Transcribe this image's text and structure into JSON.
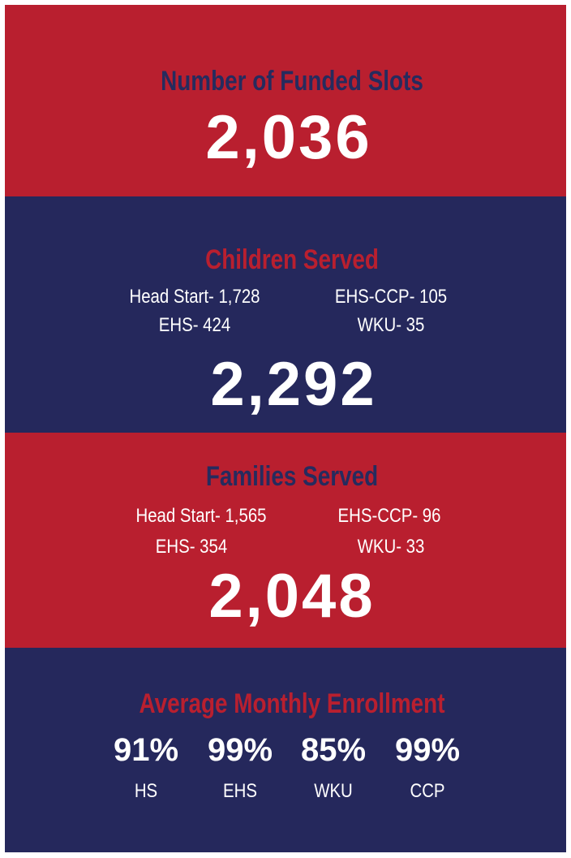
{
  "sections": [
    {
      "title": "Number of Funded Slots",
      "total": "2,036"
    },
    {
      "title": "Children Served",
      "items": [
        "Head Start- 1,728",
        "EHS-CCP- 105",
        "EHS- 424",
        "WKU- 35"
      ],
      "total": "2,292"
    },
    {
      "title": "Families Served",
      "items": [
        "Head Start- 1,565",
        "EHS-CCP- 96",
        "EHS- 354",
        "WKU- 33"
      ],
      "total": "2,048"
    },
    {
      "title": "Average Monthly Enrollment",
      "stats": [
        {
          "value": "91%",
          "label": "HS"
        },
        {
          "value": "99%",
          "label": "EHS"
        },
        {
          "value": "85%",
          "label": "WKU"
        },
        {
          "value": "99%",
          "label": "CCP"
        }
      ]
    }
  ]
}
